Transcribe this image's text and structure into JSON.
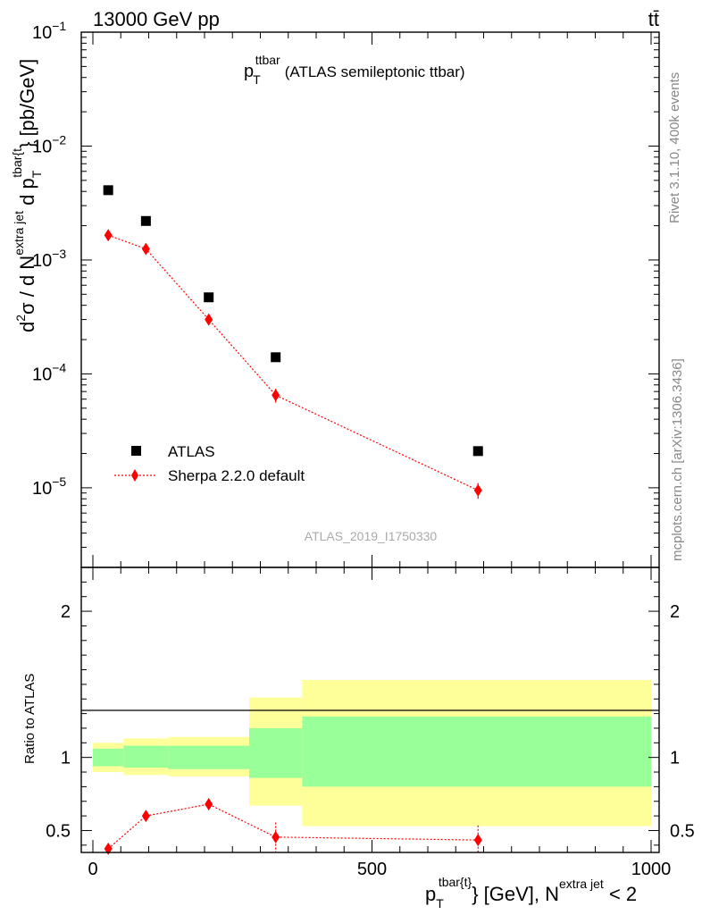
{
  "header": {
    "left": "13000 GeV pp",
    "right": "tt̄"
  },
  "side_text": {
    "rivet": "Rivet 3.1.10,  400k events",
    "mcplots": "mcplots.cern.ch [arXiv:1306.3436]"
  },
  "colors": {
    "data": "#000000",
    "mc": "#ff0000",
    "band_outer": "#ffff99",
    "band_inner": "#99ff99"
  },
  "chart_data": [
    {
      "type": "scatter",
      "title": "p_T^ttbar (ATLAS semileptonic ttbar)",
      "title_parts": {
        "p": "p",
        "sup": "ttbar",
        "sub": "T",
        "rest": "(ATLAS semileptonic ttbar)"
      },
      "ylabel": "d²σ / d N^{extra jet} d p_T^{tbar{t}} [pb/GeV]",
      "ylabel_parts": {
        "a": "d",
        "b": "2",
        "c": "σ  /  d N",
        "d": "extra jet",
        "e": " d p",
        "f": "tbar{t",
        "g": "T",
        "h": "} [pb/GeV]"
      },
      "y_scale": "log",
      "ylim": [
        2e-06,
        0.1
      ],
      "xlim": [
        -20,
        1000
      ],
      "y_ticks": [
        {
          "v": 1e-05,
          "base": "10",
          "exp": "−5"
        },
        {
          "v": 0.0001,
          "base": "10",
          "exp": "−4"
        },
        {
          "v": 0.001,
          "base": "10",
          "exp": "−3"
        },
        {
          "v": 0.01,
          "base": "10",
          "exp": "−2"
        },
        {
          "v": 0.1,
          "base": "10",
          "exp": "−1"
        }
      ],
      "watermark": "ATLAS_2019_I1750330",
      "legend_position": "lower-left",
      "series": [
        {
          "name": "ATLAS",
          "marker": "square",
          "x": [
            27.5,
            95,
            207.5,
            327.5,
            690
          ],
          "y": [
            0.0041,
            0.0022,
            0.00047,
            0.00014,
            2.1e-05
          ]
        },
        {
          "name": "Sherpa 2.2.0 default",
          "marker": "diamond",
          "line": "dotted",
          "x": [
            27.5,
            95,
            207.5,
            327.5,
            690
          ],
          "y": [
            0.00165,
            0.00125,
            0.0003,
            6.5e-05,
            9.5e-06
          ],
          "yerr": [
            8e-05,
            6e-05,
            2.5e-05,
            9e-06,
            1.5e-06
          ]
        }
      ]
    },
    {
      "type": "line",
      "ylabel": "Ratio to ATLAS",
      "xlabel_parts": {
        "a": "p",
        "b": "tbar{t}",
        "c": "T",
        "d": "} [GeV], N",
        "e": "extra jet",
        "f": " < 2"
      },
      "ylim": [
        0.35,
        2.3
      ],
      "xlim": [
        -20,
        1000
      ],
      "y_ticks": [
        "0.5",
        "1",
        "2"
      ],
      "x_ticks": [
        "0",
        "500",
        "1000"
      ],
      "bands": {
        "edges": [
          0,
          55,
          135,
          280,
          375,
          1000
        ],
        "outer_low": [
          0.9,
          0.88,
          0.87,
          0.67,
          0.53
        ],
        "outer_high": [
          1.1,
          1.13,
          1.14,
          1.41,
          1.53
        ],
        "inner_low": [
          0.94,
          0.93,
          0.92,
          0.86,
          0.8
        ],
        "inner_high": [
          1.06,
          1.08,
          1.08,
          1.2,
          1.28
        ]
      },
      "series": [
        {
          "name": "Sherpa 2.2.0 default / ATLAS",
          "marker": "diamond",
          "line": "dotted",
          "x": [
            27.5,
            95,
            207.5,
            327.5,
            690
          ],
          "y": [
            0.375,
            0.6,
            0.68,
            0.455,
            0.435
          ],
          "yerr": [
            0.03,
            0.03,
            0.04,
            0.1,
            0.1
          ]
        }
      ]
    }
  ]
}
